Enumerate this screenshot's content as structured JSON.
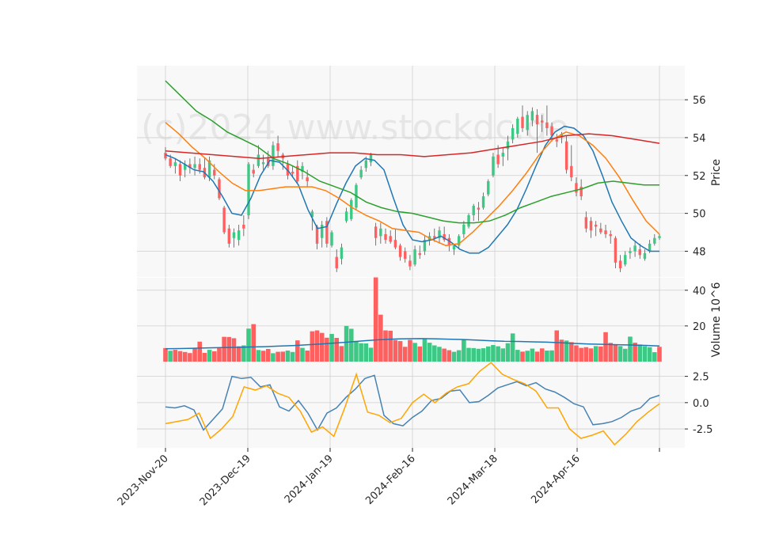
{
  "watermark": "(c)2024 www.stockdc.de",
  "colors": {
    "up": "#3dc985",
    "down": "#fe5f5f",
    "ema_short": "#1f77b4",
    "ema_mid": "#ff7f0e",
    "ema_long": "#2ca02c",
    "ema_200": "#d62728",
    "macd": "#4682b4",
    "signal": "#ffa500",
    "panel_bg": "#f8f8f8",
    "grid": "#cfcfcf"
  },
  "chart_data": {
    "type": "candlestick",
    "x_ticks": [
      "2023-Nov-20",
      "2023-Dec-19",
      "2024-Jan-19",
      "2024-Feb-16",
      "2024-Mar-18",
      "2024-Apr-16"
    ],
    "panels": [
      {
        "name": "price",
        "ylabel": "Price",
        "yticks": [
          48,
          50,
          52,
          54,
          56
        ],
        "ylim": [
          46.6,
          57.8
        ],
        "candles_ohlc_every_session": [
          [
            53.2,
            53.5,
            52.8,
            52.9
          ],
          [
            52.9,
            53.1,
            52.4,
            52.5
          ],
          [
            52.5,
            52.9,
            52.1,
            52.7
          ],
          [
            52.6,
            52.8,
            51.7,
            52.0
          ],
          [
            52.3,
            52.8,
            51.9,
            52.6
          ],
          [
            52.6,
            52.9,
            52.1,
            52.4
          ],
          [
            52.4,
            53.0,
            52.0,
            52.6
          ],
          [
            52.6,
            52.9,
            52.1,
            52.3
          ],
          [
            52.4,
            52.9,
            51.8,
            51.9
          ],
          [
            51.9,
            53.0,
            51.7,
            52.8
          ],
          [
            52.3,
            52.6,
            51.8,
            52.0
          ],
          [
            51.8,
            51.9,
            50.7,
            50.8
          ],
          [
            50.3,
            50.4,
            48.9,
            49.0
          ],
          [
            49.2,
            49.4,
            48.2,
            48.4
          ],
          [
            48.7,
            49.2,
            48.2,
            49.0
          ],
          [
            48.6,
            49.4,
            48.3,
            49.1
          ],
          [
            49.4,
            49.9,
            48.8,
            49.2
          ],
          [
            49.9,
            52.7,
            49.7,
            52.6
          ],
          [
            52.3,
            52.6,
            51.9,
            52.1
          ],
          [
            52.5,
            53.6,
            52.4,
            53.1
          ],
          [
            52.6,
            53.1,
            52.3,
            52.7
          ],
          [
            52.9,
            53.3,
            52.4,
            52.5
          ],
          [
            52.5,
            53.8,
            52.3,
            53.6
          ],
          [
            53.7,
            54.1,
            53.0,
            53.3
          ],
          [
            53.1,
            53.2,
            52.3,
            52.9
          ],
          [
            52.6,
            52.8,
            51.8,
            52.0
          ],
          [
            52.2,
            52.5,
            51.9,
            52.1
          ],
          [
            52.5,
            52.8,
            51.6,
            51.7
          ],
          [
            52.2,
            52.7,
            51.8,
            52.5
          ],
          [
            51.9,
            52.3,
            51.4,
            51.7
          ],
          [
            49.8,
            50.2,
            49.1,
            50.1
          ],
          [
            49.3,
            49.4,
            48.1,
            48.4
          ],
          [
            48.7,
            49.6,
            48.2,
            49.4
          ],
          [
            49.6,
            49.8,
            48.2,
            48.4
          ],
          [
            48.3,
            49.1,
            48.2,
            49.0
          ],
          [
            47.7,
            48.1,
            46.9,
            47.1
          ],
          [
            47.6,
            48.4,
            47.3,
            48.2
          ],
          [
            49.6,
            50.3,
            49.5,
            50.1
          ],
          [
            49.7,
            50.8,
            49.6,
            50.7
          ],
          [
            50.3,
            51.6,
            50.2,
            51.5
          ],
          [
            51.9,
            52.5,
            51.8,
            52.3
          ],
          [
            52.4,
            53.0,
            52.2,
            52.8
          ],
          [
            52.7,
            53.2,
            52.5,
            53.1
          ],
          [
            49.3,
            49.5,
            48.3,
            48.7
          ],
          [
            48.8,
            49.5,
            48.4,
            49.2
          ],
          [
            48.9,
            49.2,
            48.4,
            48.6
          ],
          [
            48.8,
            49.1,
            48.4,
            48.5
          ],
          [
            48.6,
            49.2,
            48.1,
            48.2
          ],
          [
            48.3,
            48.4,
            47.5,
            47.7
          ],
          [
            48.0,
            48.2,
            47.4,
            47.6
          ],
          [
            47.5,
            47.8,
            47.0,
            47.2
          ],
          [
            47.3,
            48.3,
            47.2,
            48.1
          ],
          [
            47.9,
            48.3,
            47.6,
            47.8
          ],
          [
            48.0,
            48.8,
            47.8,
            48.6
          ],
          [
            48.6,
            49.0,
            48.3,
            48.8
          ],
          [
            48.8,
            49.2,
            48.5,
            48.7
          ],
          [
            48.7,
            49.3,
            48.4,
            49.1
          ],
          [
            48.9,
            49.3,
            48.5,
            48.6
          ],
          [
            48.7,
            48.9,
            48.0,
            48.3
          ],
          [
            48.1,
            48.4,
            47.8,
            48.3
          ],
          [
            48.3,
            48.9,
            48.1,
            48.8
          ],
          [
            48.9,
            49.6,
            48.7,
            49.4
          ],
          [
            49.3,
            50.0,
            49.2,
            49.9
          ],
          [
            49.9,
            50.5,
            49.6,
            50.4
          ],
          [
            50.3,
            50.6,
            49.6,
            50.2
          ],
          [
            50.3,
            51.1,
            50.2,
            50.9
          ],
          [
            51.0,
            51.8,
            50.9,
            51.7
          ],
          [
            52.0,
            53.2,
            51.9,
            53.0
          ],
          [
            53.1,
            53.6,
            52.4,
            52.6
          ],
          [
            53.0,
            53.5,
            52.5,
            53.2
          ],
          [
            53.4,
            54.1,
            52.8,
            53.8
          ],
          [
            53.9,
            54.7,
            53.7,
            54.5
          ],
          [
            54.2,
            55.1,
            54.0,
            55.0
          ],
          [
            55.1,
            55.7,
            54.3,
            54.5
          ],
          [
            54.4,
            55.4,
            54.1,
            55.2
          ],
          [
            54.9,
            55.6,
            54.6,
            55.4
          ],
          [
            55.2,
            55.5,
            53.2,
            54.7
          ],
          [
            54.9,
            55.2,
            54.3,
            54.8
          ],
          [
            54.8,
            55.7,
            54.1,
            54.5
          ],
          [
            54.6,
            54.8,
            53.8,
            54.1
          ],
          [
            53.9,
            54.2,
            53.5,
            53.8
          ],
          [
            54.0,
            54.3,
            53.7,
            54.2
          ],
          [
            53.8,
            54.1,
            52.1,
            52.3
          ],
          [
            52.5,
            53.6,
            51.7,
            51.9
          ],
          [
            51.6,
            51.9,
            50.9,
            51.1
          ],
          [
            51.4,
            51.8,
            50.7,
            50.9
          ],
          [
            49.8,
            50.1,
            49.0,
            49.2
          ],
          [
            49.6,
            49.8,
            48.7,
            49.1
          ],
          [
            49.4,
            49.6,
            48.8,
            49.3
          ],
          [
            49.2,
            49.5,
            48.9,
            49.0
          ],
          [
            49.1,
            49.4,
            48.7,
            48.9
          ],
          [
            48.9,
            49.1,
            48.4,
            48.8
          ],
          [
            48.7,
            48.8,
            47.1,
            47.4
          ],
          [
            47.5,
            47.8,
            46.9,
            47.1
          ],
          [
            47.3,
            48.0,
            47.2,
            47.8
          ],
          [
            47.9,
            48.2,
            47.6,
            48.0
          ],
          [
            48.0,
            48.5,
            47.7,
            48.3
          ],
          [
            48.1,
            48.4,
            47.6,
            47.8
          ],
          [
            47.6,
            48.1,
            47.5,
            47.9
          ],
          [
            48.0,
            48.6,
            47.9,
            48.4
          ],
          [
            48.4,
            48.9,
            48.3,
            48.7
          ],
          [
            48.7,
            48.9,
            48.6,
            48.8
          ]
        ],
        "ma_lines": [
          {
            "name": "ema_short",
            "color": "#1f77b4",
            "values": [
              53.1,
              52.9,
              52.6,
              52.3,
              52.2,
              51.7,
              50.9,
              50.0,
              49.9,
              50.8,
              52.0,
              52.8,
              52.7,
              52.2,
              51.5,
              50.2,
              49.2,
              49.3,
              50.5,
              51.6,
              52.5,
              52.9,
              52.8,
              52.3,
              50.8,
              49.4,
              48.6,
              48.5,
              48.6,
              48.8,
              48.5,
              48.1,
              47.9,
              47.9,
              48.2,
              48.8,
              49.4,
              50.2,
              51.3,
              52.5,
              53.6,
              54.3,
              54.6,
              54.5,
              54.1,
              53.3,
              52.0,
              50.6,
              49.6,
              48.7,
              48.3,
              48.0,
              48.0
            ]
          },
          {
            "name": "ema_mid",
            "color": "#ff7f0e",
            "values": [
              54.8,
              54.2,
              53.5,
              52.9,
              52.2,
              51.6,
              51.2,
              51.2,
              51.3,
              51.4,
              51.4,
              51.4,
              51.2,
              50.8,
              50.3,
              49.9,
              49.6,
              49.2,
              49.1,
              49.0,
              48.6,
              48.3,
              48.4,
              49.0,
              49.7,
              50.4,
              51.2,
              52.1,
              53.1,
              53.9,
              54.3,
              54.1,
              53.6,
              52.9,
              51.9,
              50.7,
              49.6,
              48.9
            ]
          },
          {
            "name": "ema_long",
            "color": "#2ca02c",
            "values": [
              57.0,
              56.2,
              55.4,
              54.9,
              54.3,
              53.9,
              53.5,
              52.9,
              52.6,
              52.2,
              51.7,
              51.4,
              51.1,
              50.6,
              50.3,
              50.1,
              50.0,
              49.8,
              49.6,
              49.5,
              49.5,
              49.6,
              49.9,
              50.3,
              50.6,
              50.9,
              51.1,
              51.3,
              51.6,
              51.7,
              51.6,
              51.5,
              51.5
            ]
          },
          {
            "name": "ema_200",
            "color": "#d62728",
            "values": [
              53.3,
              53.2,
              53.1,
              53.0,
              52.9,
              53.0,
              53.1,
              53.2,
              53.2,
              53.1,
              53.1,
              53.0,
              53.1,
              53.2,
              53.4,
              53.6,
              53.8,
              54.1,
              54.2,
              54.1,
              53.9,
              53.7
            ]
          }
        ]
      },
      {
        "name": "volume",
        "ylabel": "Volume  10^6",
        "yticks": [
          20,
          40
        ],
        "ylim": [
          0,
          47
        ],
        "bars_every_session": [
          7.6,
          6.1,
          6.6,
          5.9,
          5.4,
          4.8,
          7.3,
          11.2,
          4.9,
          6.6,
          5.8,
          7.5,
          13.9,
          13.8,
          13.1,
          8.6,
          9.1,
          18.5,
          21.0,
          6.5,
          6.1,
          7.1,
          4.7,
          5.5,
          5.6,
          6.2,
          5.4,
          11.9,
          7.7,
          6.2,
          17.0,
          17.5,
          16.1,
          13.4,
          15.5,
          13.3,
          8.7,
          20.0,
          18.4,
          11.6,
          10.3,
          10.2,
          7.8,
          47.2,
          26.3,
          17.5,
          17.3,
          12.1,
          11.5,
          8.3,
          12.2,
          10.5,
          8.5,
          13.1,
          10.6,
          9.1,
          8.3,
          7.3,
          6.4,
          5.5,
          6.4,
          12.4,
          7.7,
          7.6,
          7.2,
          7.5,
          8.5,
          9.3,
          8.6,
          7.4,
          10.3,
          15.8,
          6.6,
          5.6,
          6.1,
          7.3,
          5.6,
          7.4,
          6.2,
          6.3,
          17.5,
          12.3,
          11.8,
          10.9,
          9.1,
          7.7,
          8.1,
          7.4,
          8.7,
          8.5,
          16.5,
          10.5,
          9.5,
          8.7,
          7.2,
          14.0,
          10.6,
          9.6,
          8.6,
          8.1,
          5.3,
          8.3
        ],
        "bar_up_sessions": [
          1,
          9,
          16,
          17,
          19,
          22,
          25,
          26,
          28,
          34,
          37,
          38,
          39,
          40,
          41,
          42,
          51,
          53,
          54,
          55,
          56,
          59,
          60,
          61,
          62,
          63,
          64,
          65,
          66,
          67,
          68,
          69,
          70,
          71,
          72,
          74,
          75,
          78,
          79,
          82,
          88,
          93,
          94,
          95,
          97,
          98,
          99,
          100
        ],
        "ma_values": [
          7.2,
          7.3,
          7.5,
          7.7,
          7.9,
          8.0,
          8.2,
          8.4,
          8.7,
          9.0,
          9.4,
          9.9,
          10.4,
          11.0,
          11.6,
          12.2,
          12.6,
          12.8,
          12.9,
          12.8,
          12.6,
          12.4,
          12.1,
          11.7,
          11.4,
          11.3,
          11.1,
          10.9,
          10.6,
          10.2,
          9.9,
          9.7,
          9.5,
          9.3,
          9.1,
          8.8
        ]
      },
      {
        "name": "macd",
        "yticks": [
          -2.5,
          0.0,
          2.5
        ],
        "ylim": [
          -4.3,
          3.9
        ],
        "series": [
          {
            "name": "macd",
            "color": "#4682b4",
            "values": [
              -0.4,
              -0.5,
              -0.3,
              -0.7,
              -2.6,
              -1.6,
              -0.6,
              2.5,
              2.3,
              2.4,
              1.5,
              1.7,
              -0.4,
              -0.8,
              0.2,
              -1.0,
              -2.6,
              -1.0,
              -0.5,
              0.5,
              1.3,
              2.3,
              2.6,
              -1.2,
              -2.0,
              -2.2,
              -1.4,
              -0.8,
              0.2,
              0.4,
              1.1,
              1.2,
              0.0,
              0.1,
              0.7,
              1.4,
              1.7,
              2.0,
              1.6,
              1.9,
              1.3,
              1.0,
              0.5,
              -0.1,
              -0.4,
              -2.1,
              -2.0,
              -1.8,
              -1.4,
              -0.8,
              -0.5,
              0.4,
              0.7
            ]
          },
          {
            "name": "signal",
            "color": "#ffa500",
            "values": [
              -2.0,
              -1.8,
              -1.6,
              -1.0,
              -3.4,
              -2.5,
              -1.3,
              1.5,
              1.2,
              1.6,
              0.9,
              0.5,
              -0.8,
              -2.8,
              -2.3,
              -3.2,
              -0.4,
              2.7,
              -0.9,
              -1.2,
              -1.9,
              -1.5,
              0.0,
              0.8,
              0.0,
              0.9,
              1.5,
              1.8,
              3.0,
              3.8,
              2.7,
              2.2,
              1.8,
              1.1,
              -0.5,
              -0.5,
              -2.5,
              -3.4,
              -3.1,
              -2.7,
              -4.0,
              -3.0,
              -1.8,
              -0.9,
              -0.1
            ]
          }
        ]
      }
    ]
  }
}
